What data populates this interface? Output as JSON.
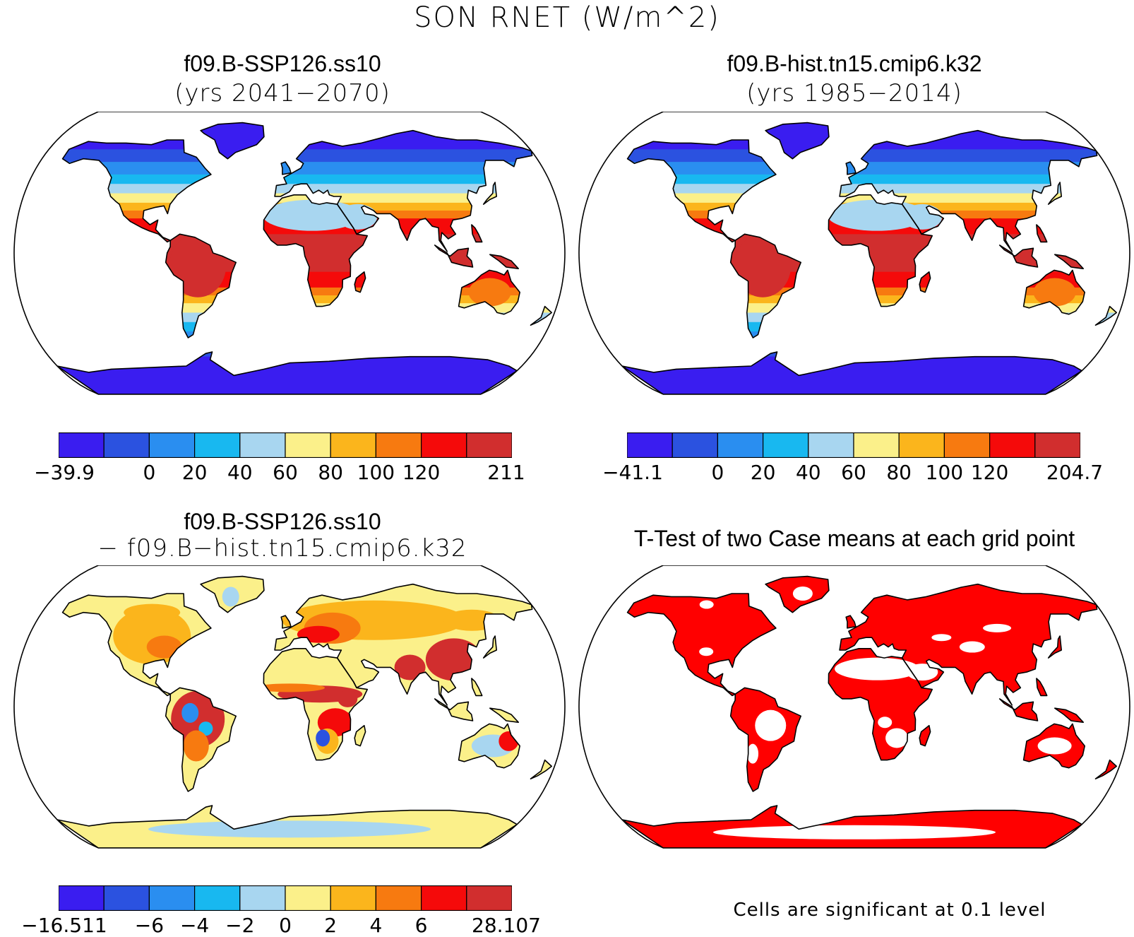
{
  "main_title": "SON RNET (W/m^2)",
  "palette": [
    "#3a1df0",
    "#2b52e0",
    "#2a8ef0",
    "#18b8f0",
    "#a8d6f0",
    "#fbf08a",
    "#fbb51c",
    "#f77a10",
    "#f50a0a",
    "#d12e2e"
  ],
  "panels": [
    {
      "title": "f09.B-SSP126.ss10",
      "subtitle": "(yrs 2041−2070)",
      "colorbar_labels": [
        "−39.9",
        "0",
        "20",
        "40",
        "60",
        "80",
        "100",
        "120",
        "211"
      ],
      "colorbar_positions": [
        0,
        2,
        3,
        4,
        5,
        6,
        7,
        8,
        10
      ],
      "land_pattern": "mean"
    },
    {
      "title": "f09.B-hist.tn15.cmip6.k32",
      "subtitle": "(yrs 1985−2014)",
      "colorbar_labels": [
        "−41.1",
        "0",
        "20",
        "40",
        "60",
        "80",
        "100",
        "120",
        "204.7"
      ],
      "colorbar_positions": [
        0,
        2,
        3,
        4,
        5,
        6,
        7,
        8,
        10
      ],
      "land_pattern": "mean"
    },
    {
      "title": "f09.B-SSP126.ss10",
      "subtitle": "− f09.B−hist.tn15.cmip6.k32",
      "colorbar_labels": [
        "−16.511",
        "−6",
        "−4",
        "−2",
        "0",
        "2",
        "4",
        "6",
        "28.107"
      ],
      "colorbar_positions": [
        0,
        2,
        3,
        4,
        5,
        6,
        7,
        8,
        10
      ],
      "land_pattern": "difference"
    },
    {
      "title": "T-Test of two Case means at each grid point",
      "subtitle": "",
      "note": "Cells are significant at 0.1 level",
      "significance_color": "#ff0000",
      "land_pattern": "significance"
    }
  ]
}
